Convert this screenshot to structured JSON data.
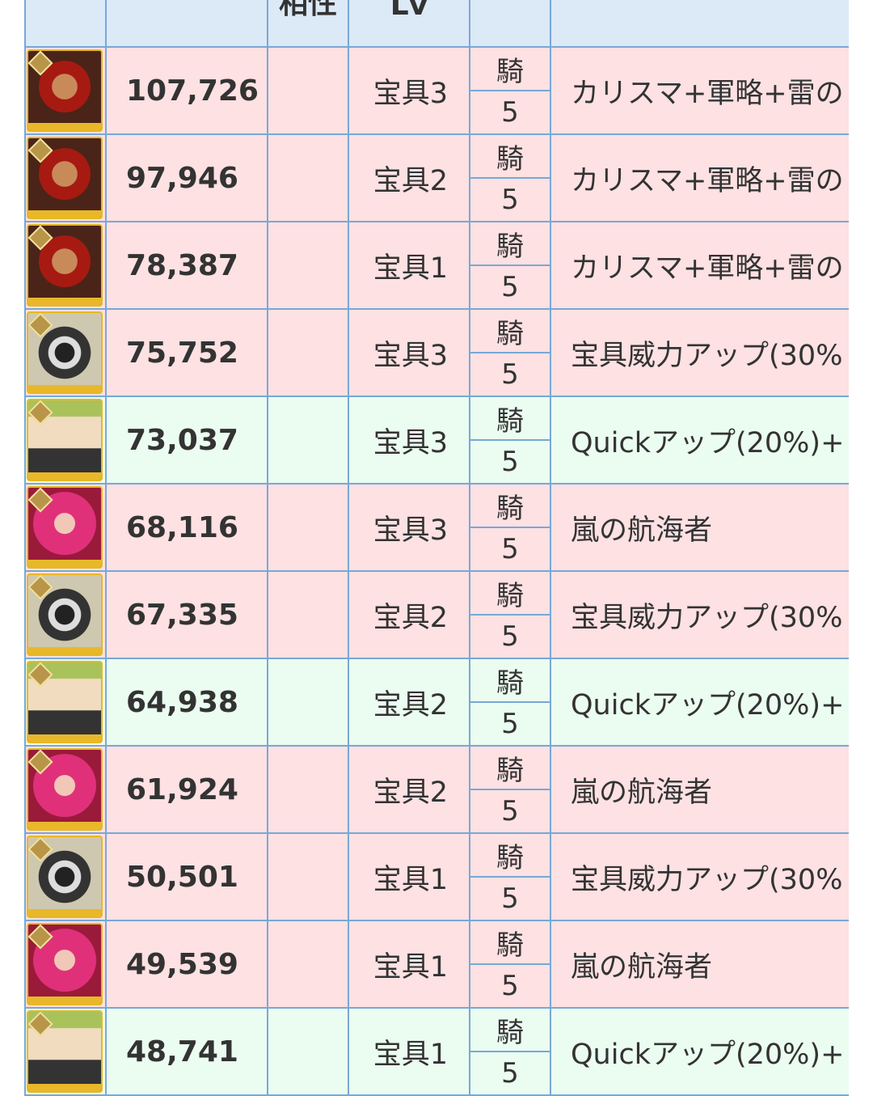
{
  "header": {
    "columns": [
      "",
      "",
      "相性",
      "Lv",
      "",
      ""
    ]
  },
  "colors": {
    "pink_row": "#fde1e3",
    "green_row": "#ebfcf1",
    "header": "#dce9f7",
    "border": "#78a8d6"
  },
  "rows": [
    {
      "portrait": "red-haired-servant",
      "damage": "107,726",
      "np": "宝具3",
      "class": "騎",
      "level": "5",
      "skill": "カリスマ+軍略+雷の",
      "tone": "pink"
    },
    {
      "portrait": "red-haired-servant",
      "damage": "97,946",
      "np": "宝具2",
      "class": "騎",
      "level": "5",
      "skill": "カリスマ+軍略+雷の",
      "tone": "pink"
    },
    {
      "portrait": "red-haired-servant",
      "damage": "78,387",
      "np": "宝具1",
      "class": "騎",
      "level": "5",
      "skill": "カリスマ+軍略+雷の",
      "tone": "pink"
    },
    {
      "portrait": "armored-servant",
      "damage": "75,752",
      "np": "宝具3",
      "class": "騎",
      "level": "5",
      "skill": "宝具威力アップ(30%",
      "tone": "pink"
    },
    {
      "portrait": "green-haired-servant",
      "damage": "73,037",
      "np": "宝具3",
      "class": "騎",
      "level": "5",
      "skill": "Quickアップ(20%)+",
      "tone": "green"
    },
    {
      "portrait": "pink-haired-servant",
      "damage": "68,116",
      "np": "宝具3",
      "class": "騎",
      "level": "5",
      "skill": "嵐の航海者",
      "tone": "pink"
    },
    {
      "portrait": "armored-servant",
      "damage": "67,335",
      "np": "宝具2",
      "class": "騎",
      "level": "5",
      "skill": "宝具威力アップ(30%",
      "tone": "pink"
    },
    {
      "portrait": "green-haired-servant",
      "damage": "64,938",
      "np": "宝具2",
      "class": "騎",
      "level": "5",
      "skill": "Quickアップ(20%)+",
      "tone": "green"
    },
    {
      "portrait": "pink-haired-servant",
      "damage": "61,924",
      "np": "宝具2",
      "class": "騎",
      "level": "5",
      "skill": "嵐の航海者",
      "tone": "pink"
    },
    {
      "portrait": "armored-servant",
      "damage": "50,501",
      "np": "宝具1",
      "class": "騎",
      "level": "5",
      "skill": "宝具威力アップ(30%",
      "tone": "pink"
    },
    {
      "portrait": "pink-haired-servant",
      "damage": "49,539",
      "np": "宝具1",
      "class": "騎",
      "level": "5",
      "skill": "嵐の航海者",
      "tone": "pink"
    },
    {
      "portrait": "green-haired-servant",
      "damage": "48,741",
      "np": "宝具1",
      "class": "騎",
      "level": "5",
      "skill": "Quickアップ(20%)+",
      "tone": "green"
    }
  ]
}
